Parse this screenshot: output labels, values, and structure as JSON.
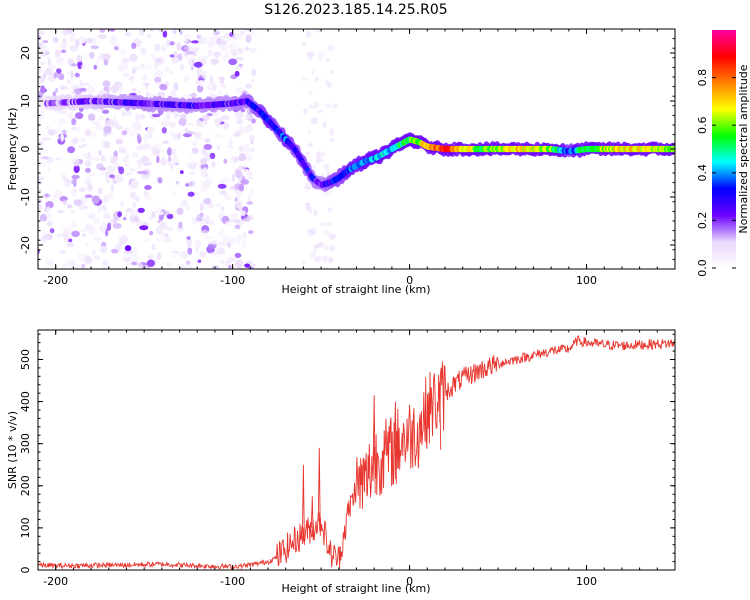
{
  "title": "S126.2023.185.14.25.R05",
  "chart_data": [
    {
      "type": "heatmap",
      "title": "",
      "xlabel": "Height of straight line (km)",
      "ylabel": "Frequency (Hz)",
      "xlim": [
        -210,
        150
      ],
      "ylim": [
        -25,
        25
      ],
      "x_ticks": [
        -200,
        -100,
        0,
        100
      ],
      "y_ticks": [
        -20,
        -10,
        0,
        10,
        20
      ],
      "colorbar": {
        "label": "Normalized spectral amplitude",
        "range": [
          0.0,
          1.0
        ],
        "ticks": [
          "0.0",
          "0.2",
          "0.4",
          "0.6",
          "0.8"
        ],
        "colormap": [
          "#ffffff",
          "#e8d6fb",
          "#6a00ff",
          "#0000ff",
          "#00ffff",
          "#00ff00",
          "#ffff00",
          "#ff8000",
          "#ff0000",
          "#ff00a0"
        ]
      },
      "ridge": {
        "x": [
          -205,
          -180,
          -150,
          -120,
          -100,
          -92,
          -85,
          -80,
          -75,
          -70,
          -65,
          -60,
          -55,
          -50,
          -45,
          -40,
          -35,
          -30,
          -25,
          -20,
          -15,
          -10,
          -5,
          0,
          5,
          10,
          20,
          40,
          60,
          80,
          90,
          100,
          120,
          150
        ],
        "frequency": [
          9.5,
          10,
          9.5,
          9,
          9.5,
          10,
          8,
          6,
          4,
          2,
          0,
          -3,
          -6,
          -7.5,
          -7,
          -6,
          -4.5,
          -3.5,
          -2.5,
          -2,
          -1,
          0,
          1,
          2,
          1.5,
          0.5,
          0,
          0,
          0,
          0,
          -0.5,
          0,
          0,
          0
        ],
        "amplitude": [
          0.15,
          0.2,
          0.25,
          0.25,
          0.25,
          0.28,
          0.3,
          0.35,
          0.3,
          0.35,
          0.3,
          0.3,
          0.28,
          0.25,
          0.3,
          0.32,
          0.35,
          0.35,
          0.38,
          0.4,
          0.42,
          0.45,
          0.5,
          0.55,
          0.6,
          0.75,
          0.85,
          0.55,
          0.7,
          0.6,
          0.3,
          0.55,
          0.7,
          0.6
        ]
      }
    },
    {
      "type": "line",
      "title": "",
      "xlabel": "Height of straight line (km)",
      "ylabel": "SNR (10 * v/v)",
      "xlim": [
        -210,
        150
      ],
      "ylim": [
        0,
        570
      ],
      "x_ticks": [
        -200,
        -100,
        0,
        100
      ],
      "y_ticks": [
        0,
        100,
        200,
        300,
        400,
        500
      ],
      "color": "#e8352e",
      "x": [
        -210,
        -200,
        -180,
        -160,
        -140,
        -120,
        -100,
        -90,
        -80,
        -75,
        -70,
        -65,
        -60,
        -55,
        -50,
        -45,
        -40,
        -35,
        -30,
        -25,
        -20,
        -15,
        -10,
        -5,
        0,
        5,
        10,
        15,
        20,
        25,
        30,
        40,
        50,
        60,
        70,
        80,
        90,
        95,
        100,
        110,
        120,
        130,
        140,
        150
      ],
      "values": [
        12,
        10,
        11,
        12,
        14,
        10,
        8,
        12,
        20,
        30,
        50,
        70,
        85,
        100,
        120,
        40,
        25,
        130,
        200,
        210,
        260,
        270,
        280,
        310,
        320,
        330,
        380,
        400,
        420,
        440,
        455,
        475,
        490,
        500,
        510,
        520,
        525,
        545,
        540,
        535,
        533,
        535,
        537,
        538
      ],
      "spikes": [
        {
          "x": -60,
          "value": 250
        },
        {
          "x": -55,
          "value": 175
        },
        {
          "x": -51,
          "value": 290
        },
        {
          "x": -20,
          "value": 415
        },
        {
          "x": -8,
          "value": 400
        },
        {
          "x": 17,
          "value": 445
        }
      ]
    }
  ]
}
